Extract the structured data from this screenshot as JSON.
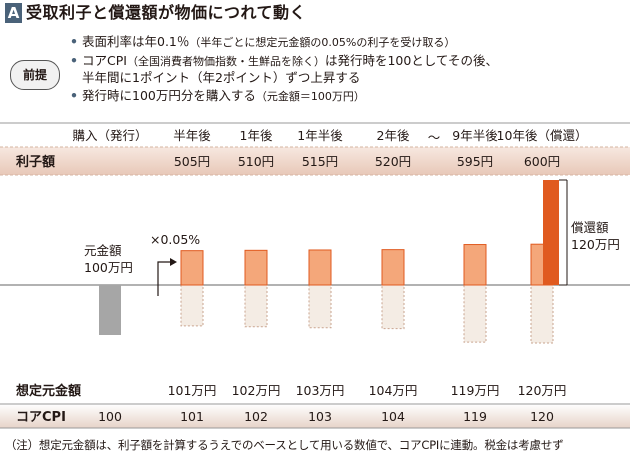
{
  "title": {
    "tag": "A",
    "text": "受取利子と償還額が物価につれて動く"
  },
  "premise": {
    "badge": "前提",
    "items": [
      {
        "main": "表面利率は年0.1％",
        "sub": "（半年ごとに想定元金額の0.05%の利子を受け取る）"
      },
      {
        "line1_main": "コアCPI",
        "line1_sub": "（全国消費者物価指数・生鮮品を除く）",
        "line1_rest": "は発行時を100としてその後、",
        "line2": "半年間に1ポイント（年2ポイント）ずつ上昇する"
      },
      {
        "main": "発行時に100万円分を購入する",
        "sub": "（元金額＝100万円）"
      }
    ]
  },
  "colors": {
    "header_band": "#f2ddd3",
    "header_band_dark": "#e3c4b4",
    "interest_fill": "#f4a77a",
    "interest_stroke": "#e05a1f",
    "redemption_fill": "#e05a1f",
    "principal_fill": "#f4ece4",
    "initial_bar": "#a6a6a6",
    "axis": "#666666",
    "title_tag": "#4a6279"
  },
  "chart_data": {
    "type": "bar",
    "title": "受取利子と償還額が物価につれて動く",
    "categories": [
      "購入（発行）",
      "半年後",
      "1年後",
      "1年半後",
      "2年後",
      "9年半後",
      "10年後（償還）"
    ],
    "break_label": "〜",
    "row_labels": {
      "interest": "利子額",
      "principal": "想定元金額",
      "cpi": "コアCPI"
    },
    "interest_labels": [
      "",
      "505円",
      "510円",
      "515円",
      "520円",
      "595円",
      "600円"
    ],
    "interest_values": [
      null,
      505,
      510,
      515,
      520,
      595,
      600
    ],
    "principal_labels": [
      "",
      "101万円",
      "102万円",
      "103万円",
      "104万円",
      "119万円",
      "120万円"
    ],
    "principal_values": [
      100,
      101,
      102,
      103,
      104,
      119,
      120
    ],
    "cpi": [
      "100",
      "101",
      "102",
      "103",
      "104",
      "119",
      "120"
    ],
    "initial_principal_label": [
      "元金額",
      "100万円"
    ],
    "rate_annotation": "×0.05%",
    "redemption_label": [
      "償還額",
      "120万円"
    ],
    "redemption_value": 120,
    "redemption_unit": "万円"
  },
  "footnote": "（注）想定元金額は、利子額を計算するうえでのベースとして用いる数値で、コアCPIに連動。税金は考慮せず"
}
